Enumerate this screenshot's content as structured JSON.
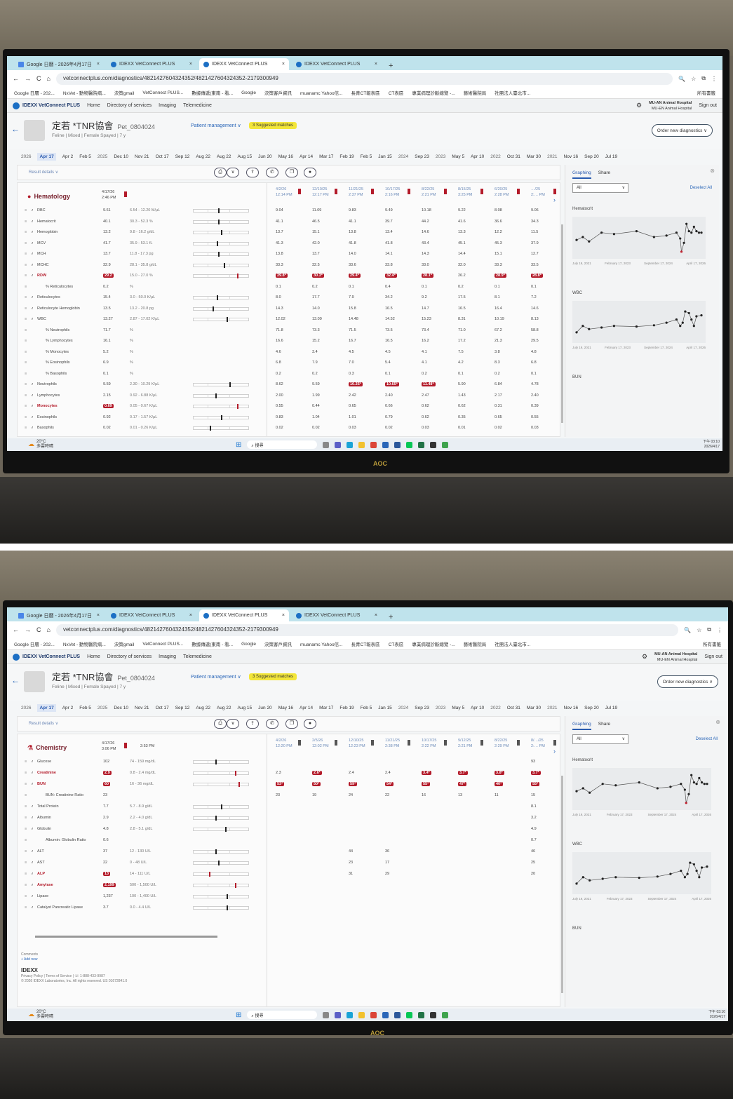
{
  "browser": {
    "tabs": [
      {
        "label": "Google 日曆 - 2026年4月17日",
        "icon": "calendar-icon"
      },
      {
        "label": "IDEXX VetConnect PLUS",
        "icon": "idexx-icon"
      },
      {
        "label": "IDEXX VetConnect PLUS",
        "icon": "idexx-icon",
        "active": true
      },
      {
        "label": "IDEXX VetConnect PLUS",
        "icon": "idexx-icon"
      }
    ],
    "url": "vetconnectplus.com/diagnostics/4821427604324352/4821427604324352-2179300949",
    "bookmarks": [
      "Google 日曆 - 202...",
      "NxVet - 動物醫院病...",
      "決策gmail",
      "VetConnect PLUS...",
      "數據傳遞(東南 - 看...",
      "Google",
      "決策客戶資訊",
      "muanamc Yahoo信...",
      "長青CT報表區",
      "CT表區",
      "專業病理診斷總覽 -...",
      "藝術醫院局",
      "社團法人臺北市..."
    ],
    "all_bookmarks": "所有書籤"
  },
  "app": {
    "brand": "IDEXX VetConnect PLUS",
    "nav": [
      "Home",
      "Directory of services",
      "Imaging",
      "Telemedicine"
    ],
    "clinic": "MU-AN Animal Hospital",
    "clinic_sub": "MU-EN Animal Hospital",
    "sign_out": "Sign out"
  },
  "patient": {
    "name": "定若 *TNR協會",
    "id": "Pet_0804024",
    "meta": "Feline  |  Mixed  |  Female Spayed  |  7 y",
    "management": "Patient management ∨",
    "matches": "3 Suggested matches",
    "order": "Order new diagnostics ∨"
  },
  "timeline": [
    {
      "t": "2026",
      "yr": true
    },
    {
      "t": "Apr 17",
      "sel": true
    },
    {
      "t": "Apr 2"
    },
    {
      "t": "Feb 5"
    },
    {
      "t": "2025",
      "yr": true
    },
    {
      "t": "Dec 10"
    },
    {
      "t": "Nov 21"
    },
    {
      "t": "Oct 17"
    },
    {
      "t": "Sep 12"
    },
    {
      "t": "Aug 22"
    },
    {
      "t": "Aug 22"
    },
    {
      "t": "Aug 15"
    },
    {
      "t": "Jun 20"
    },
    {
      "t": "May 16"
    },
    {
      "t": "Apr 14"
    },
    {
      "t": "Mar 17"
    },
    {
      "t": "Feb 19"
    },
    {
      "t": "Feb 5"
    },
    {
      "t": "Jan 15"
    },
    {
      "t": "2024",
      "yr": true
    },
    {
      "t": "Sep 23"
    },
    {
      "t": "2023",
      "yr": true
    },
    {
      "t": "May 5"
    },
    {
      "t": "Apr 10"
    },
    {
      "t": "2022",
      "yr": true
    },
    {
      "t": "Oct 31"
    },
    {
      "t": "Mar 30"
    },
    {
      "t": "2021",
      "yr": true
    },
    {
      "t": "Nov 16"
    },
    {
      "t": "Sep 20"
    },
    {
      "t": "Jul 19"
    }
  ],
  "result_details": "Result details ∨",
  "hematology": {
    "title": "Hematology",
    "date": "4/17/26",
    "time": "2:46 PM",
    "history_cols": [
      [
        "4/2/26",
        "12:14 PM"
      ],
      [
        "12/10/25",
        "12:17 PM"
      ],
      [
        "11/21/25",
        "2:37 PM"
      ],
      [
        "10/17/25",
        "2:16 PM"
      ],
      [
        "8/22/25",
        "2:21 PM"
      ],
      [
        "8/15/25",
        "3:25 PM"
      ],
      [
        "6/20/25",
        "2:28 PM"
      ],
      [
        "…/25",
        "2:… PM"
      ]
    ],
    "rows": [
      {
        "name": "RBC",
        "value": "9.61",
        "range": "6.54 - 12.20 M/µL",
        "pos": 0.45,
        "hist": [
          "9.04",
          "11.09",
          "9.83",
          "9.49",
          "10.18",
          "9.22",
          "8.08",
          "9.06"
        ]
      },
      {
        "name": "Hematocrit",
        "value": "40.1",
        "range": "30.3 - 52.3 %",
        "pos": 0.45,
        "hist": [
          "41.1",
          "46.5",
          "41.1",
          "39.7",
          "44.2",
          "41.6",
          "36.6",
          "34.3"
        ]
      },
      {
        "name": "Hemoglobin",
        "value": "13.2",
        "range": "9.8 - 16.2 g/dL",
        "pos": 0.5,
        "hist": [
          "13.7",
          "15.1",
          "13.8",
          "13.4",
          "14.6",
          "13.3",
          "12.2",
          "11.5"
        ]
      },
      {
        "name": "MCV",
        "value": "41.7",
        "range": "35.9 - 53.1 fL",
        "pos": 0.42,
        "hist": [
          "41.3",
          "42.0",
          "41.8",
          "41.8",
          "43.4",
          "45.1",
          "45.3",
          "37.9"
        ]
      },
      {
        "name": "MCH",
        "value": "13.7",
        "range": "11.8 - 17.3 pg",
        "pos": 0.45,
        "hist": [
          "13.8",
          "13.7",
          "14.0",
          "14.1",
          "14.3",
          "14.4",
          "15.1",
          "12.7"
        ]
      },
      {
        "name": "MCHC",
        "value": "32.9",
        "range": "28.1 - 35.8 g/dL",
        "pos": 0.55,
        "hist": [
          "33.3",
          "32.5",
          "33.6",
          "33.8",
          "33.0",
          "32.0",
          "33.3",
          "33.5"
        ]
      },
      {
        "name": "RDW",
        "value": "29.2",
        "flag": "H",
        "range": "15.0 - 27.0 %",
        "pos": 0.8,
        "hist": [
          "29.8*",
          "30.3*",
          "29.4*",
          "32.4*",
          "28.1*",
          "26.2",
          "28.9*",
          "28.8*"
        ]
      },
      {
        "name": "% Reticulocytes",
        "value": "0.2",
        "range": "%",
        "indent": true,
        "hist": [
          "0.1",
          "0.2",
          "0.1",
          "0.4",
          "0.1",
          "0.2",
          "0.1",
          "0.1"
        ]
      },
      {
        "name": "Reticulocytes",
        "value": "15.4",
        "range": "3.0 - 50.0 K/µL",
        "pos": 0.42,
        "hist": [
          "8.0",
          "17.7",
          "7.9",
          "34.2",
          "9.2",
          "17.5",
          "8.1",
          "7.2"
        ]
      },
      {
        "name": "Reticulocyte Hemoglobin",
        "value": "13.5",
        "range": "13.2 - 20.8 pg",
        "pos": 0.35,
        "hist": [
          "14.3",
          "14.0",
          "15.8",
          "16.5",
          "14.7",
          "16.5",
          "16.4",
          "14.6"
        ]
      },
      {
        "name": "WBC",
        "value": "13.27",
        "range": "2.87 - 17.02 K/µL",
        "pos": 0.6,
        "hist": [
          "12.02",
          "13.09",
          "14.48",
          "14.52",
          "15.23",
          "8.31",
          "10.19",
          "8.13"
        ]
      },
      {
        "name": "% Neutrophils",
        "value": "71.7",
        "range": "%",
        "indent": true,
        "hist": [
          "71.8",
          "73.3",
          "71.5",
          "73.5",
          "73.4",
          "71.0",
          "67.2",
          "58.8"
        ]
      },
      {
        "name": "% Lymphocytes",
        "value": "16.1",
        "range": "%",
        "indent": true,
        "hist": [
          "16.6",
          "15.2",
          "16.7",
          "16.5",
          "16.2",
          "17.2",
          "21.3",
          "29.5"
        ]
      },
      {
        "name": "% Monocytes",
        "value": "5.2",
        "range": "%",
        "indent": true,
        "hist": [
          "4.6",
          "3.4",
          "4.5",
          "4.5",
          "4.1",
          "7.5",
          "3.8",
          "4.8"
        ]
      },
      {
        "name": "% Eosinophils",
        "value": "6.9",
        "range": "%",
        "indent": true,
        "hist": [
          "6.8",
          "7.9",
          "7.0",
          "5.4",
          "4.1",
          "4.2",
          "8.3",
          "6.8"
        ]
      },
      {
        "name": "% Basophils",
        "value": "0.1",
        "range": "%",
        "indent": true,
        "hist": [
          "0.2",
          "0.2",
          "0.3",
          "0.1",
          "0.2",
          "0.1",
          "0.2",
          "0.1"
        ]
      },
      {
        "name": "Neutrophils",
        "value": "9.59",
        "range": "2.30 - 10.29 K/µL",
        "pos": 0.65,
        "hist": [
          "8.62",
          "9.59",
          "10.35*",
          "10.65*",
          "11.48*",
          "5.90",
          "6.84",
          "4.78"
        ]
      },
      {
        "name": "Lymphocytes",
        "value": "2.15",
        "range": "0.92 - 6.88 K/µL",
        "pos": 0.4,
        "hist": [
          "2.00",
          "1.99",
          "2.42",
          "2.40",
          "2.47",
          "1.43",
          "2.17",
          "2.40"
        ]
      },
      {
        "name": "Monocytes",
        "value": "0.69",
        "flag": "H",
        "range": "0.05 - 0.67 K/µL",
        "pos": 0.8,
        "hist": [
          "0.55",
          "0.44",
          "0.65",
          "0.66",
          "0.62",
          "0.62",
          "0.31",
          "0.39"
        ]
      },
      {
        "name": "Eosinophils",
        "value": "0.92",
        "range": "0.17 - 1.57 K/µL",
        "pos": 0.5,
        "hist": [
          "0.83",
          "1.04",
          "1.01",
          "0.79",
          "0.62",
          "0.35",
          "0.65",
          "0.55"
        ]
      },
      {
        "name": "Basophils",
        "value": "0.02",
        "range": "0.01 - 0.26 K/µL",
        "pos": 0.3,
        "hist": [
          "0.02",
          "0.02",
          "0.03",
          "0.02",
          "0.03",
          "0.01",
          "0.02",
          "0.03"
        ]
      }
    ]
  },
  "chemistry": {
    "title": "Chemistry",
    "date": "4/17/26",
    "time": "3:06 PM",
    "time2": "2:53 PM",
    "history_cols": [
      [
        "4/2/26",
        "12:20 PM"
      ],
      [
        "2/5/26",
        "12:02 PM"
      ],
      [
        "12/10/25",
        "12:23 PM"
      ],
      [
        "11/21/25",
        "2:38 PM"
      ],
      [
        "10/17/25",
        "2:22 PM"
      ],
      [
        "9/12/25",
        "2:21 PM"
      ],
      [
        "8/22/25",
        "2:29 PM"
      ],
      [
        "8/…/25",
        "2:… PM"
      ]
    ],
    "rows": [
      {
        "name": "Glucose",
        "value": "102",
        "range": "74 - 159 mg/dL",
        "pos": 0.4,
        "hist": [
          "",
          "",
          "",
          "",
          "",
          "",
          "",
          "93"
        ]
      },
      {
        "name": "Creatinine",
        "value": "2.9",
        "flag": "H",
        "range": "0.8 - 2.4 mg/dL",
        "pos": 0.75,
        "hist": [
          "2.3",
          "2.6*",
          "2.4",
          "2.4",
          "3.4*",
          "3.7*",
          "3.8*",
          "3.7*"
        ]
      },
      {
        "name": "BUN",
        "value": "60",
        "flag": "H",
        "range": "16 - 36 mg/dL",
        "pos": 0.82,
        "hist": [
          "53*",
          "50*",
          "59*",
          "54*",
          "55*",
          "47*",
          "40*",
          "55*"
        ]
      },
      {
        "name": "BUN: Creatinine Ratio",
        "value": "23",
        "range": "",
        "indent": true,
        "hist": [
          "23",
          "19",
          "24",
          "22",
          "16",
          "13",
          "11",
          "15"
        ]
      },
      {
        "name": "Total Protein",
        "value": "7.7",
        "range": "5.7 - 8.9 g/dL",
        "pos": 0.5,
        "hist": [
          "",
          "",
          "",
          "",
          "",
          "",
          "",
          "8.1"
        ]
      },
      {
        "name": "Albumin",
        "value": "2.9",
        "range": "2.2 - 4.0 g/dL",
        "pos": 0.4,
        "hist": [
          "",
          "",
          "",
          "",
          "",
          "",
          "",
          "3.2"
        ]
      },
      {
        "name": "Globulin",
        "value": "4.8",
        "range": "2.8 - 5.1 g/dL",
        "pos": 0.58,
        "hist": [
          "",
          "",
          "",
          "",
          "",
          "",
          "",
          "4.9"
        ]
      },
      {
        "name": "Albumin: Globulin Ratio",
        "value": "0.6",
        "range": "",
        "indent": true,
        "hist": [
          "",
          "",
          "",
          "",
          "",
          "",
          "",
          "0.7"
        ]
      },
      {
        "name": "ALT",
        "value": "37",
        "range": "12 - 130 U/L",
        "pos": 0.4,
        "hist": [
          "",
          "",
          "44",
          "36",
          "",
          "",
          "",
          "46"
        ]
      },
      {
        "name": "AST",
        "value": "22",
        "range": "0 - 48 U/L",
        "pos": 0.45,
        "hist": [
          "",
          "",
          "23",
          "17",
          "",
          "",
          "",
          "25"
        ]
      },
      {
        "name": "ALP",
        "value": "13",
        "flag": "L",
        "range": "14 - 111 U/L",
        "pos": 0.28,
        "hist": [
          "",
          "",
          "31",
          "29",
          "",
          "",
          "",
          "20"
        ]
      },
      {
        "name": "Amylase",
        "value": "2,199",
        "flag": "H",
        "range": "500 - 1,500 U/L",
        "pos": 0.75,
        "hist": [
          "",
          "",
          "",
          "",
          "",
          "",
          "",
          ""
        ]
      },
      {
        "name": "Lipase",
        "value": "1,237",
        "range": "100 - 1,400 U/L",
        "pos": 0.6,
        "hist": [
          "",
          "",
          "",
          "",
          "",
          "",
          "",
          ""
        ]
      },
      {
        "name": "Catalyst Pancreatic Lipase",
        "value": "3.7",
        "range": "0.0 - 4.4 U/L",
        "pos": 0.6,
        "hist": [
          "",
          "",
          "",
          "",
          "",
          "",
          "",
          ""
        ]
      }
    ]
  },
  "side": {
    "graphing": "Graphing",
    "share": "Share",
    "filter": "All",
    "deselect": "Deselect All",
    "graphs": [
      {
        "label": "Hematocrit",
        "points": [
          [
            0,
            35
          ],
          [
            0.05,
            37
          ],
          [
            0.1,
            34
          ],
          [
            0.2,
            40
          ],
          [
            0.3,
            39
          ],
          [
            0.48,
            41
          ],
          [
            0.62,
            37
          ],
          [
            0.72,
            38
          ],
          [
            0.8,
            40
          ],
          [
            0.83,
            36
          ],
          [
            0.84,
            27
          ],
          [
            0.86,
            33
          ],
          [
            0.88,
            46
          ],
          [
            0.9,
            41
          ],
          [
            0.92,
            40
          ],
          [
            0.94,
            44
          ],
          [
            0.96,
            41
          ],
          [
            0.98,
            40
          ],
          [
            1,
            40
          ]
        ],
        "low": [
          0.84
        ]
      },
      {
        "label": "WBC",
        "points": [
          [
            0,
            8
          ],
          [
            0.05,
            10
          ],
          [
            0.1,
            9
          ],
          [
            0.2,
            9.5
          ],
          [
            0.3,
            10
          ],
          [
            0.48,
            9.8
          ],
          [
            0.62,
            10.2
          ],
          [
            0.72,
            11
          ],
          [
            0.8,
            12
          ],
          [
            0.83,
            10
          ],
          [
            0.85,
            11
          ],
          [
            0.87,
            14.5
          ],
          [
            0.9,
            14
          ],
          [
            0.92,
            12
          ],
          [
            0.94,
            10
          ],
          [
            0.96,
            13
          ],
          [
            1,
            13.3
          ]
        ]
      },
      {
        "label": "BUN"
      }
    ],
    "axis": [
      "July 19, 2021",
      "February 17, 2023",
      "September 17, 2024",
      "April 17, 2026"
    ]
  },
  "footer": {
    "comments": "Comments",
    "add_new": "+ Add new",
    "idexx": "IDEXX",
    "links": "Privacy Policy  |  Terms of Service  |  ☏ 1-888-433-9987",
    "copyright": "© 2026 IDEXX Laboratories, Inc. All rights reserved. US 01672841.0"
  },
  "taskbar": {
    "temp": "20°C",
    "weather": "多雲時晴",
    "search": "搜尋",
    "time": "下午 03:10",
    "date": "2026/4/17"
  },
  "monitor_brand": "AOC",
  "colors": {
    "abnormal": "#b31b2a",
    "accent": "#2a66b8",
    "tab_bar": "#bfe3ec"
  }
}
